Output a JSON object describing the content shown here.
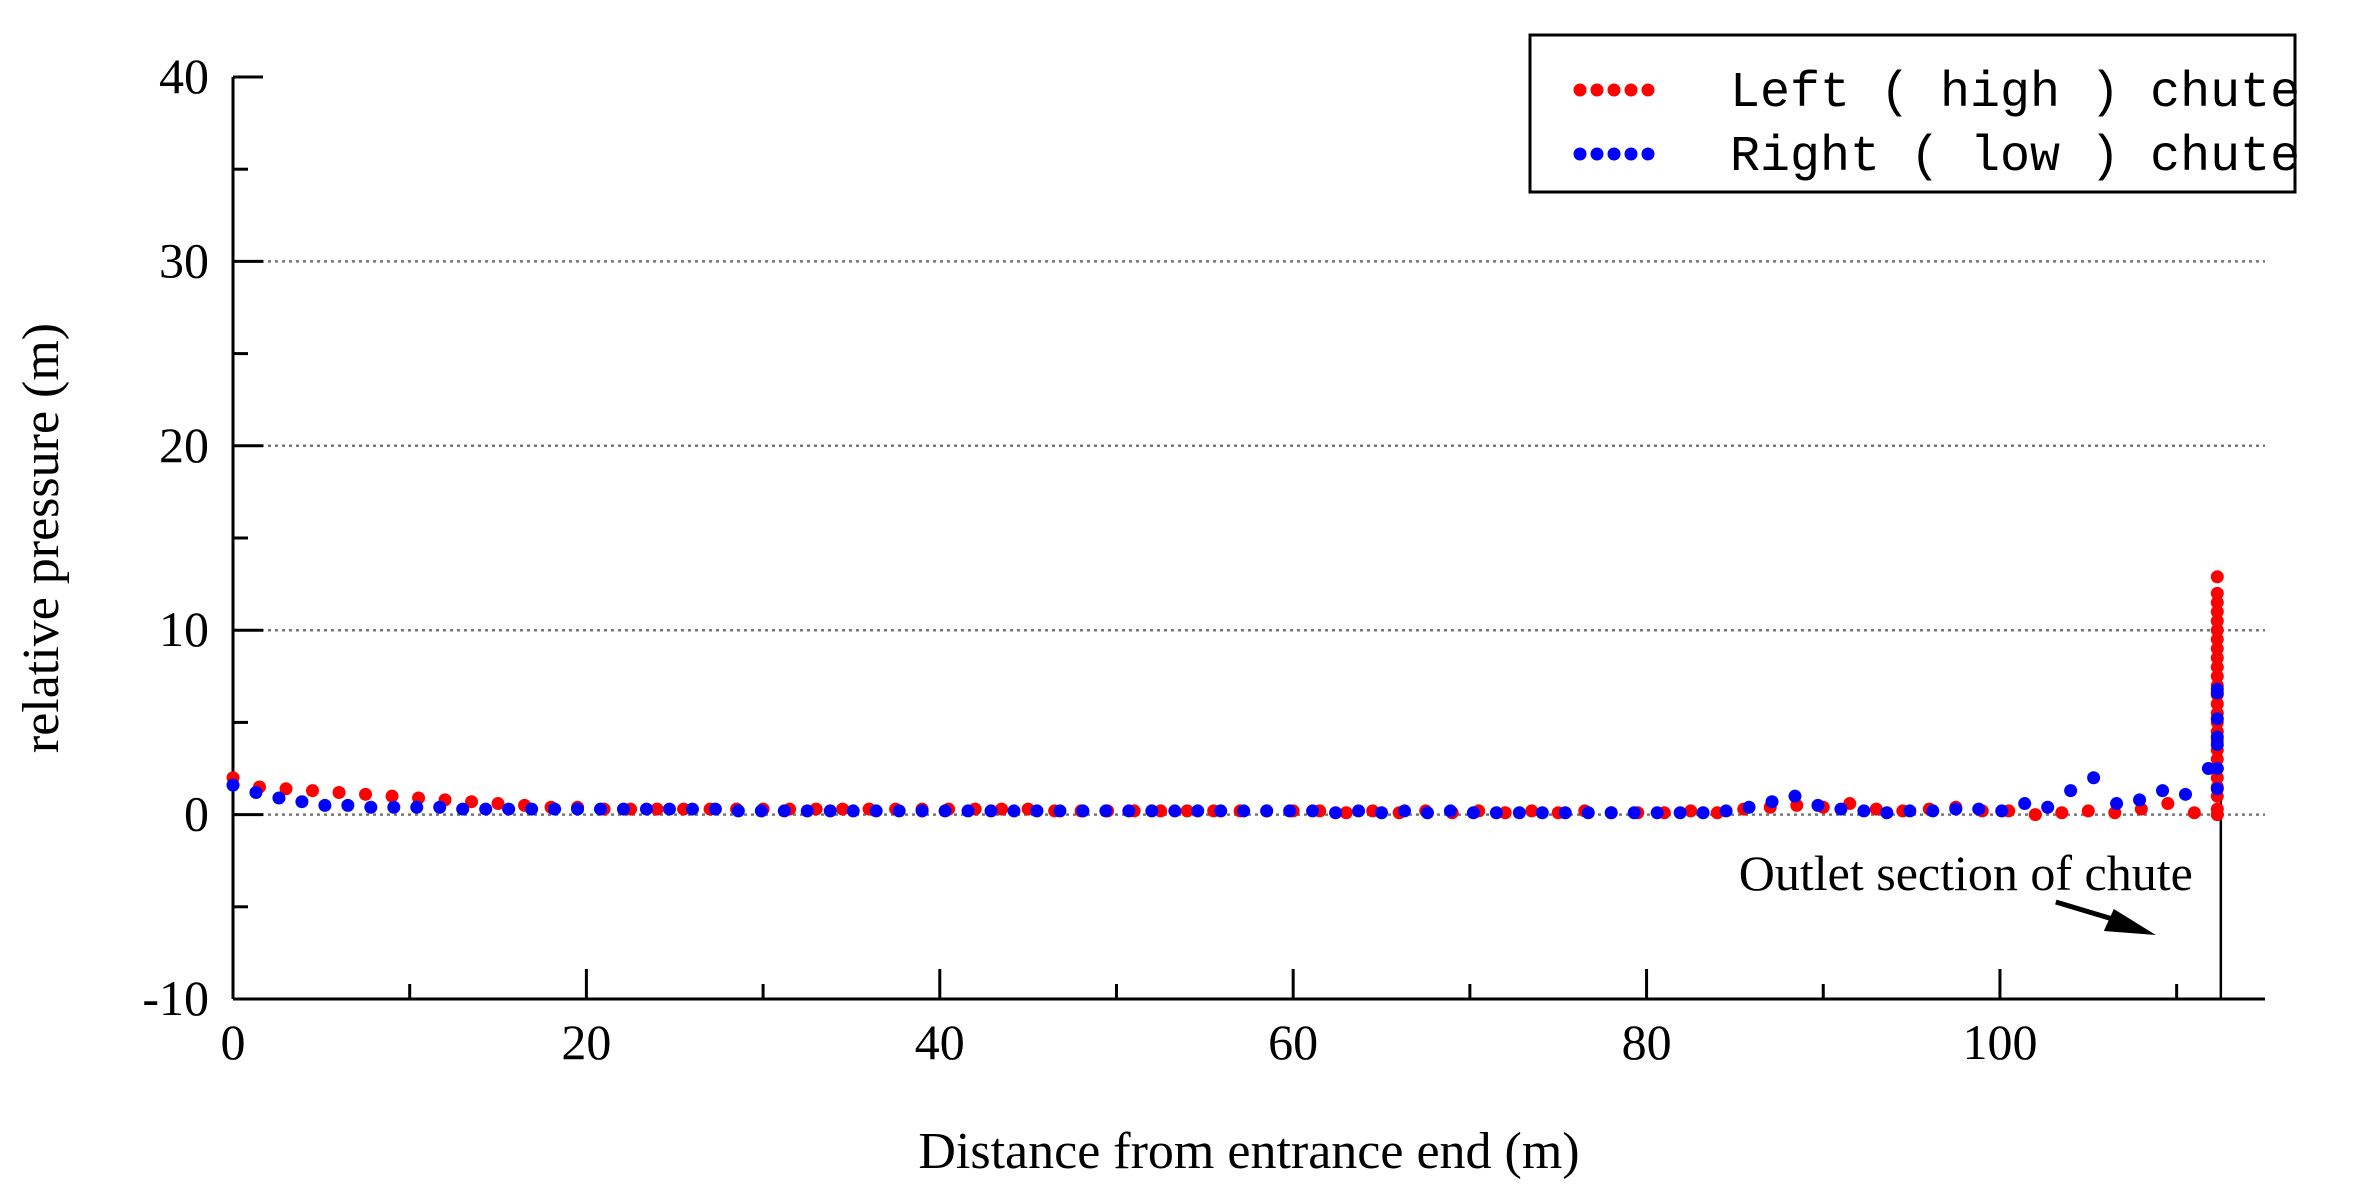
{
  "chart_data": {
    "type": "scatter",
    "title": "",
    "xlabel": "Distance from entrance end (m)",
    "ylabel": "relative pressure (m)",
    "xlim": [
      0,
      115
    ],
    "ylim": [
      -10,
      40
    ],
    "x_ticks": [
      0,
      20,
      40,
      60,
      80,
      100
    ],
    "y_ticks": [
      -10,
      0,
      10,
      20,
      30,
      40
    ],
    "x_tick_labels": [
      "0",
      "20",
      "40",
      "60",
      "80",
      "100"
    ],
    "y_tick_labels": [
      "-10",
      "0",
      "10",
      "20",
      "30",
      "40"
    ],
    "grid": "horizontal dotted at 10, 20, 30 and 0",
    "legend": {
      "placement": "top-right",
      "entries": [
        "Left ( high ) chute",
        "Right ( low ) chute"
      ]
    },
    "annotation": {
      "text": "Outlet section of chute",
      "points_to_x": 112.5
    },
    "series": [
      {
        "name": "Left ( high ) chute",
        "color": "#ff0000",
        "x": [
          0.0,
          1.5,
          3.0,
          4.5,
          6.0,
          7.5,
          9.0,
          10.5,
          12.0,
          13.5,
          15.0,
          16.5,
          18.0,
          19.5,
          21.0,
          22.5,
          24.0,
          25.5,
          27.0,
          28.5,
          30.0,
          31.5,
          33.0,
          34.5,
          36.0,
          37.5,
          39.0,
          40.5,
          42.0,
          43.5,
          45.0,
          46.5,
          48.0,
          49.5,
          51.0,
          52.5,
          54.0,
          55.5,
          57.0,
          58.5,
          60.0,
          61.5,
          63.0,
          64.5,
          66.0,
          67.5,
          69.0,
          70.5,
          72.0,
          73.5,
          75.0,
          76.5,
          78.0,
          79.5,
          81.0,
          82.5,
          84.0,
          85.5,
          87.0,
          88.5,
          90.0,
          91.5,
          93.0,
          94.5,
          96.0,
          97.5,
          99.0,
          100.5,
          102.0,
          103.5,
          105.0,
          106.5,
          108.0,
          109.5,
          111.0,
          112.3,
          112.3,
          112.3,
          112.3,
          112.3,
          112.3,
          112.3,
          112.3,
          112.3,
          112.3,
          112.3,
          112.3,
          112.3,
          112.3,
          112.3,
          112.3,
          112.3,
          112.3,
          112.3,
          112.3,
          112.3,
          112.3,
          112.3,
          112.3,
          112.3,
          112.3
        ],
        "y": [
          2.0,
          1.5,
          1.4,
          1.3,
          1.2,
          1.1,
          1.0,
          0.9,
          0.8,
          0.7,
          0.6,
          0.5,
          0.4,
          0.4,
          0.3,
          0.3,
          0.3,
          0.3,
          0.3,
          0.3,
          0.3,
          0.3,
          0.3,
          0.3,
          0.3,
          0.3,
          0.3,
          0.3,
          0.3,
          0.3,
          0.3,
          0.2,
          0.2,
          0.2,
          0.2,
          0.2,
          0.2,
          0.2,
          0.2,
          0.2,
          0.2,
          0.2,
          0.1,
          0.2,
          0.1,
          0.2,
          0.1,
          0.2,
          0.1,
          0.2,
          0.1,
          0.2,
          0.1,
          0.1,
          0.1,
          0.2,
          0.1,
          0.3,
          0.4,
          0.5,
          0.4,
          0.6,
          0.3,
          0.2,
          0.3,
          0.4,
          0.2,
          0.2,
          0.0,
          0.1,
          0.2,
          0.1,
          0.3,
          0.6,
          0.1,
          0.0,
          0.3,
          1.0,
          1.5,
          2.0,
          2.5,
          3.0,
          3.5,
          4.0,
          4.5,
          5.0,
          5.5,
          6.0,
          6.5,
          7.0,
          7.5,
          8.0,
          8.5,
          9.0,
          9.5,
          10.0,
          10.5,
          11.0,
          11.5,
          12.0,
          12.9
        ],
        "marker_radius": 6.5
      },
      {
        "name": "Right ( low ) chute",
        "color": "#0000ff",
        "x": [
          0.0,
          1.3,
          2.6,
          3.9,
          5.2,
          6.5,
          7.8,
          9.1,
          10.4,
          11.7,
          13.0,
          14.3,
          15.6,
          16.9,
          18.2,
          19.5,
          20.8,
          22.1,
          23.4,
          24.7,
          26.0,
          27.3,
          28.6,
          29.9,
          31.2,
          32.5,
          33.8,
          35.1,
          36.4,
          37.7,
          39.0,
          40.3,
          41.6,
          42.9,
          44.2,
          45.5,
          46.8,
          48.1,
          49.4,
          50.7,
          52.0,
          53.3,
          54.6,
          55.9,
          57.2,
          58.5,
          59.8,
          61.1,
          62.4,
          63.7,
          65.0,
          66.3,
          67.6,
          68.9,
          70.2,
          71.5,
          72.8,
          74.1,
          75.4,
          76.7,
          78.0,
          79.3,
          80.6,
          81.9,
          83.2,
          84.5,
          85.8,
          87.1,
          88.4,
          89.7,
          91.0,
          92.3,
          93.6,
          94.9,
          96.2,
          97.5,
          98.8,
          100.1,
          101.4,
          102.7,
          104.0,
          105.3,
          106.6,
          107.9,
          109.2,
          110.5,
          111.8,
          112.3,
          112.3,
          112.3,
          112.3,
          112.3,
          112.3,
          112.3
        ],
        "y": [
          1.6,
          1.2,
          0.9,
          0.7,
          0.5,
          0.5,
          0.4,
          0.4,
          0.4,
          0.4,
          0.3,
          0.3,
          0.3,
          0.3,
          0.3,
          0.3,
          0.3,
          0.3,
          0.3,
          0.3,
          0.3,
          0.3,
          0.2,
          0.2,
          0.2,
          0.2,
          0.2,
          0.2,
          0.2,
          0.2,
          0.2,
          0.2,
          0.2,
          0.2,
          0.2,
          0.2,
          0.2,
          0.2,
          0.2,
          0.2,
          0.2,
          0.2,
          0.2,
          0.2,
          0.2,
          0.2,
          0.2,
          0.2,
          0.1,
          0.2,
          0.1,
          0.2,
          0.1,
          0.2,
          0.1,
          0.1,
          0.1,
          0.1,
          0.1,
          0.1,
          0.1,
          0.1,
          0.1,
          0.1,
          0.1,
          0.2,
          0.4,
          0.7,
          1.0,
          0.5,
          0.3,
          0.2,
          0.1,
          0.2,
          0.2,
          0.3,
          0.3,
          0.2,
          0.6,
          0.4,
          1.3,
          2.0,
          0.6,
          0.8,
          1.3,
          1.1,
          2.5,
          1.4,
          2.5,
          3.8,
          4.2,
          5.2,
          6.6,
          6.8
        ],
        "marker_radius": 6.5
      }
    ]
  }
}
